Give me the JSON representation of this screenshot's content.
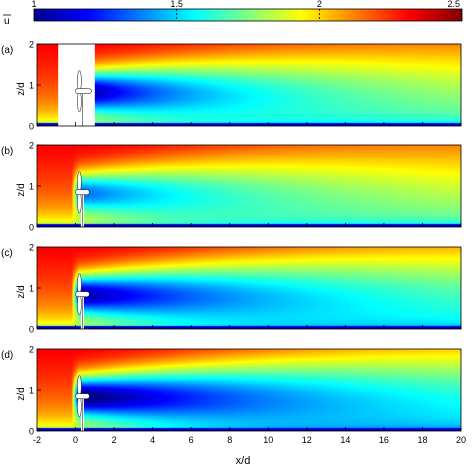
{
  "colorbar": {
    "symbol": "u",
    "ticks": [
      1,
      1.5,
      2,
      2.5
    ],
    "tick_labels": [
      "1",
      "1.5",
      "2",
      "2.5"
    ],
    "colormap": [
      "#00008f",
      "#0000ff",
      "#0080ff",
      "#00ffff",
      "#80ff80",
      "#ffff00",
      "#ff8000",
      "#ff0000",
      "#800000"
    ]
  },
  "chart_data": {
    "type": "heatmap",
    "quantity": "u",
    "value_range": [
      1,
      2.5
    ],
    "xlabel": "x/d",
    "ylabel": "z/d",
    "xlim": [
      -2,
      20
    ],
    "ylim": [
      0,
      2
    ],
    "xticks": [
      "-2",
      "0",
      "2",
      "4",
      "6",
      "8",
      "10",
      "12",
      "14",
      "16",
      "18",
      "20"
    ],
    "yticks": [
      "0",
      "1",
      "2"
    ],
    "turbine": {
      "x": 0.2,
      "hub_height": 0.85,
      "rotor_diameter": 1.0
    },
    "panels": [
      {
        "label": "(a)",
        "wake_deficit": 1.2,
        "wake_recovery": 0.11,
        "wake_spread": 0.035,
        "masked_region": [
          -0.9,
          1.0
        ]
      },
      {
        "label": "(b)",
        "wake_deficit": 0.85,
        "wake_recovery": 0.08,
        "wake_spread": 0.04,
        "masked_region": null
      },
      {
        "label": "(c)",
        "wake_deficit": 1.15,
        "wake_recovery": 0.065,
        "wake_spread": 0.035,
        "masked_region": null
      },
      {
        "label": "(d)",
        "wake_deficit": 1.25,
        "wake_recovery": 0.06,
        "wake_spread": 0.035,
        "masked_region": null
      }
    ]
  }
}
